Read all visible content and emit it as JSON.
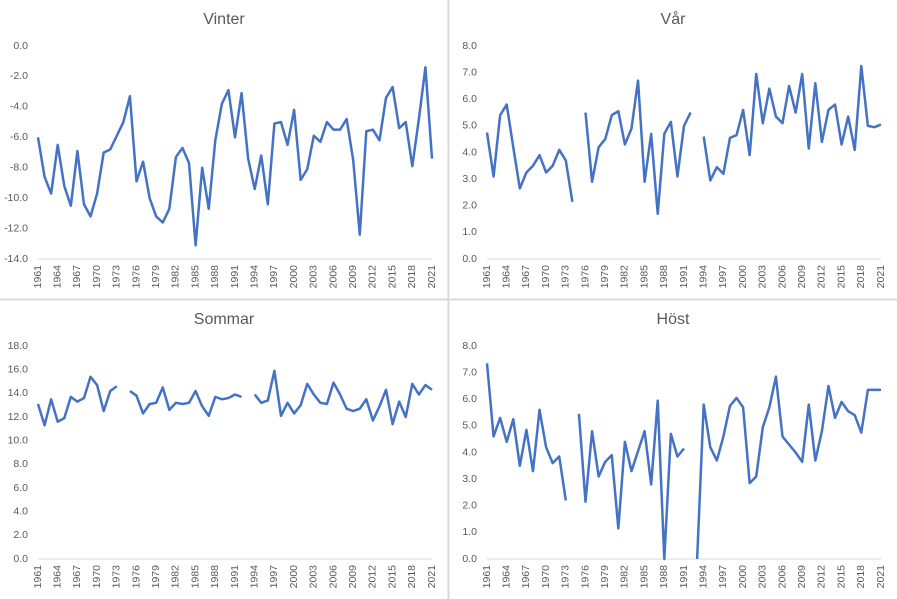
{
  "chart_data": [
    {
      "type": "line",
      "title": "Vinter",
      "color": "#4472c4",
      "categories": [
        "1961",
        null,
        null,
        "1964",
        null,
        null,
        "1967",
        null,
        null,
        "1970",
        null,
        null,
        "1973",
        null,
        null,
        "1976",
        null,
        null,
        "1979",
        null,
        null,
        "1982",
        null,
        null,
        "1985",
        null,
        null,
        "1988",
        null,
        null,
        "1991",
        null,
        null,
        "1994",
        null,
        null,
        "1997",
        null,
        null,
        "2000",
        null,
        null,
        "2003",
        null,
        null,
        "2006",
        null,
        null,
        "2009",
        null,
        null,
        "2012",
        null,
        null,
        "2015",
        null,
        null,
        "2018",
        null,
        null,
        "2021"
      ],
      "values": [
        -6.0,
        -8.6,
        -9.7,
        -6.5,
        -9.2,
        -10.5,
        -6.9,
        -10.4,
        -11.2,
        -9.7,
        -7.0,
        -6.8,
        -5.9,
        -5.0,
        -3.3,
        -8.9,
        -7.6,
        -10.0,
        -11.2,
        -11.6,
        -10.7,
        -7.3,
        -6.7,
        -7.7,
        -13.1,
        -8.0,
        -10.7,
        -6.2,
        -3.8,
        -2.9,
        -6.0,
        -3.1,
        -7.4,
        -9.4,
        -7.2,
        -10.4,
        -5.1,
        -5.0,
        -6.5,
        -4.2,
        -8.8,
        -8.1,
        -5.9,
        -6.3,
        -5.0,
        -5.5,
        -5.5,
        -4.8,
        -7.5,
        -12.4,
        -5.6,
        -5.5,
        -6.2,
        -3.4,
        -2.7,
        -5.4,
        -5.0,
        -7.9,
        -4.8,
        -1.4,
        -7.4
      ],
      "ylim": [
        -14,
        0
      ],
      "yticks": [
        {
          "value": -14,
          "label": "-14.0"
        },
        {
          "value": -12,
          "label": "-12.0"
        },
        {
          "value": -10,
          "label": "-10.0"
        },
        {
          "value": -8,
          "label": "-8.0"
        },
        {
          "value": -6,
          "label": "-6.0"
        },
        {
          "value": -4,
          "label": "-4.0"
        },
        {
          "value": -2,
          "label": "-2.0"
        },
        {
          "value": 0,
          "label": "0.0"
        }
      ]
    },
    {
      "type": "line",
      "title": "Vår",
      "color": "#4472c4",
      "categories": [
        "1961",
        null,
        null,
        "1964",
        null,
        null,
        "1967",
        null,
        null,
        "1970",
        null,
        null,
        "1973",
        null,
        null,
        "1976",
        null,
        null,
        "1979",
        null,
        null,
        "1982",
        null,
        null,
        "1985",
        null,
        null,
        "1988",
        null,
        null,
        "1991",
        null,
        null,
        "1994",
        null,
        null,
        "1997",
        null,
        null,
        "2000",
        null,
        null,
        "2003",
        null,
        null,
        "2006",
        null,
        null,
        "2009",
        null,
        null,
        "2012",
        null,
        null,
        "2015",
        null,
        null,
        "2018",
        null,
        null,
        "2021"
      ],
      "values": [
        4.75,
        3.1,
        5.4,
        5.8,
        4.2,
        2.65,
        3.25,
        3.5,
        3.9,
        3.25,
        3.5,
        4.1,
        3.7,
        2.15,
        null,
        5.5,
        2.9,
        4.2,
        4.5,
        5.4,
        5.55,
        4.3,
        4.9,
        6.7,
        2.9,
        4.7,
        1.7,
        4.7,
        5.15,
        3.1,
        5.0,
        5.5,
        null,
        4.6,
        2.95,
        3.45,
        3.2,
        4.55,
        4.65,
        5.6,
        3.9,
        6.95,
        5.1,
        6.4,
        5.35,
        5.1,
        6.5,
        5.5,
        6.95,
        4.15,
        6.6,
        4.4,
        5.6,
        5.8,
        4.3,
        5.35,
        4.1,
        7.25,
        5.0,
        4.95,
        5.05
      ],
      "ylim": [
        0,
        8
      ],
      "yticks": [
        {
          "value": 0,
          "label": "0.0"
        },
        {
          "value": 1,
          "label": "1.0"
        },
        {
          "value": 2,
          "label": "2.0"
        },
        {
          "value": 3,
          "label": "3.0"
        },
        {
          "value": 4,
          "label": "4.0"
        },
        {
          "value": 5,
          "label": "5.0"
        },
        {
          "value": 6,
          "label": "6.0"
        },
        {
          "value": 7,
          "label": "7.0"
        },
        {
          "value": 8,
          "label": "8.0"
        }
      ]
    },
    {
      "type": "line",
      "title": "Sommar",
      "color": "#4472c4",
      "categories": [
        "1961",
        null,
        null,
        "1964",
        null,
        null,
        "1967",
        null,
        null,
        "1970",
        null,
        null,
        "1973",
        null,
        null,
        "1976",
        null,
        null,
        "1979",
        null,
        null,
        "1982",
        null,
        null,
        "1985",
        null,
        null,
        "1988",
        null,
        null,
        "1991",
        null,
        null,
        "1994",
        null,
        null,
        "1997",
        null,
        null,
        "2000",
        null,
        null,
        "2003",
        null,
        null,
        "2006",
        null,
        null,
        "2009",
        null,
        null,
        "2012",
        null,
        null,
        "2015",
        null,
        null,
        "2018",
        null,
        null,
        "2021"
      ],
      "values": [
        13.1,
        11.3,
        13.5,
        11.6,
        11.9,
        13.7,
        13.3,
        13.6,
        15.4,
        14.7,
        12.5,
        14.2,
        14.6,
        null,
        14.2,
        13.8,
        12.3,
        13.1,
        13.2,
        14.5,
        12.6,
        13.2,
        13.1,
        13.2,
        14.2,
        12.9,
        12.1,
        13.7,
        13.5,
        13.6,
        13.9,
        13.7,
        null,
        13.9,
        13.2,
        13.4,
        15.9,
        12.1,
        13.2,
        12.3,
        13.0,
        14.8,
        13.9,
        13.2,
        13.1,
        14.9,
        13.9,
        12.7,
        12.5,
        12.7,
        13.5,
        11.7,
        12.9,
        14.3,
        11.4,
        13.3,
        12.0,
        14.8,
        13.9,
        14.7,
        14.3
      ],
      "ylim": [
        0,
        18
      ],
      "yticks": [
        {
          "value": 0,
          "label": "0.0"
        },
        {
          "value": 2,
          "label": "2.0"
        },
        {
          "value": 4,
          "label": "4.0"
        },
        {
          "value": 6,
          "label": "6.0"
        },
        {
          "value": 8,
          "label": "8.0"
        },
        {
          "value": 10,
          "label": "10.0"
        },
        {
          "value": 12,
          "label": "12.0"
        },
        {
          "value": 14,
          "label": "14.0"
        },
        {
          "value": 16,
          "label": "16.0"
        },
        {
          "value": 18,
          "label": "18.0"
        }
      ]
    },
    {
      "type": "line",
      "title": "Höst",
      "color": "#4472c4",
      "categories": [
        "1961",
        null,
        null,
        "1964",
        null,
        null,
        "1967",
        null,
        null,
        "1970",
        null,
        null,
        "1973",
        null,
        null,
        "1976",
        null,
        null,
        "1979",
        null,
        null,
        "1982",
        null,
        null,
        "1985",
        null,
        null,
        "1988",
        null,
        null,
        "1991",
        null,
        null,
        "1994",
        null,
        null,
        "1997",
        null,
        null,
        "2000",
        null,
        null,
        "2003",
        null,
        null,
        "2006",
        null,
        null,
        "2009",
        null,
        null,
        "2012",
        null,
        null,
        "2015",
        null,
        null,
        "2018",
        null,
        null,
        "2021"
      ],
      "values": [
        7.35,
        4.6,
        5.3,
        4.4,
        5.25,
        3.5,
        4.85,
        3.3,
        5.6,
        4.2,
        3.6,
        3.85,
        2.2,
        null,
        5.45,
        2.15,
        4.8,
        3.1,
        3.65,
        3.9,
        1.15,
        4.4,
        3.3,
        4.05,
        4.8,
        2.8,
        5.95,
        0.0,
        4.7,
        3.85,
        4.15,
        null,
        0.0,
        5.8,
        4.2,
        3.7,
        4.6,
        5.75,
        6.05,
        5.7,
        2.85,
        3.1,
        4.95,
        5.7,
        6.85,
        4.6,
        4.3,
        4.0,
        3.65,
        5.8,
        3.7,
        4.8,
        6.5,
        5.3,
        5.9,
        5.55,
        5.4,
        4.75,
        6.35,
        6.35,
        6.35
      ],
      "ylim": [
        0,
        8
      ],
      "yticks": [
        {
          "value": 0,
          "label": "0.0"
        },
        {
          "value": 1,
          "label": "1.0"
        },
        {
          "value": 2,
          "label": "2.0"
        },
        {
          "value": 3,
          "label": "3.0"
        },
        {
          "value": 4,
          "label": "4.0"
        },
        {
          "value": 5,
          "label": "5.0"
        },
        {
          "value": 6,
          "label": "6.0"
        },
        {
          "value": 7,
          "label": "7.0"
        },
        {
          "value": 8,
          "label": "8.0"
        }
      ]
    }
  ]
}
